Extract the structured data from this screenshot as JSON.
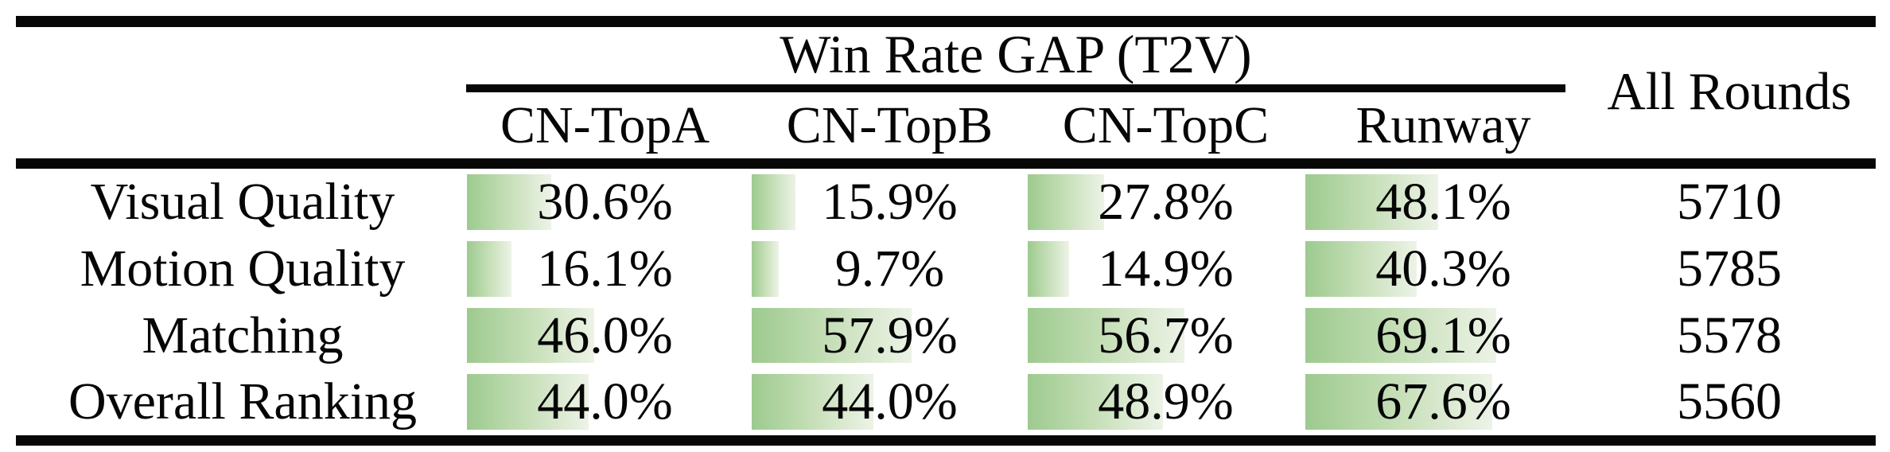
{
  "table": {
    "title": "Win Rate GAP (T2V)",
    "all_rounds_header": "All Rounds",
    "columns": [
      "CN-TopA",
      "CN-TopB",
      "CN-TopC",
      "Runway"
    ],
    "rows": [
      {
        "label": "Visual Quality",
        "values": [
          30.6,
          15.9,
          27.8,
          48.1
        ],
        "value_labels": [
          "30.6%",
          "15.9%",
          "27.8%",
          "48.1%"
        ],
        "all_rounds": "5710"
      },
      {
        "label": "Motion Quality",
        "values": [
          16.1,
          9.7,
          14.9,
          40.3
        ],
        "value_labels": [
          "16.1%",
          "9.7%",
          "14.9%",
          "40.3%"
        ],
        "all_rounds": "5785"
      },
      {
        "label": "Matching",
        "values": [
          46.0,
          57.9,
          56.7,
          69.1
        ],
        "value_labels": [
          "46.0%",
          "57.9%",
          "56.7%",
          "69.1%"
        ],
        "all_rounds": "5578"
      },
      {
        "label": "Overall Ranking",
        "values": [
          44.0,
          44.0,
          48.9,
          67.6
        ],
        "value_labels": [
          "44.0%",
          "44.0%",
          "48.9%",
          "67.6%"
        ],
        "all_rounds": "5560"
      }
    ]
  },
  "colors": {
    "bar_gradient_start": "#9dca8e",
    "bar_gradient_end": "#edf3e7",
    "rule": "#070707",
    "text": "#060606",
    "background": "#ffffff"
  },
  "chart_data": {
    "type": "table",
    "title": "Win Rate GAP (T2V)",
    "categories": [
      "Visual Quality",
      "Motion Quality",
      "Matching",
      "Overall Ranking"
    ],
    "series": [
      {
        "name": "CN-TopA",
        "values": [
          30.6,
          16.1,
          46.0,
          44.0
        ]
      },
      {
        "name": "CN-TopB",
        "values": [
          15.9,
          9.7,
          57.9,
          44.0
        ]
      },
      {
        "name": "CN-TopC",
        "values": [
          27.8,
          14.9,
          56.7,
          48.9
        ]
      },
      {
        "name": "Runway",
        "values": [
          48.1,
          40.3,
          69.1,
          67.6
        ]
      }
    ],
    "extra_column": {
      "name": "All Rounds",
      "values": [
        5710,
        5785,
        5578,
        5560
      ]
    },
    "unit": "%",
    "layout_hints": "in-cell horizontal bars, width = value% of column width, green fading gradient left to right"
  }
}
